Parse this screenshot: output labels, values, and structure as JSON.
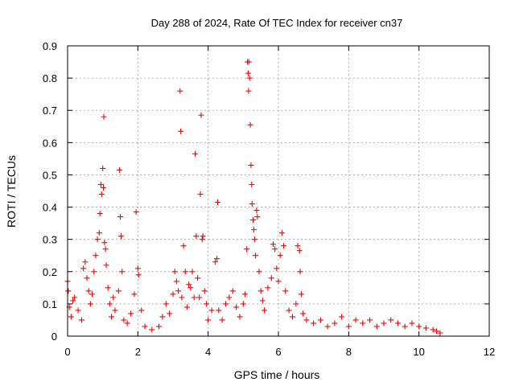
{
  "chart_data": {
    "type": "scatter",
    "title": "Day 288 of 2024, Rate Of TEC Index for receiver cn37",
    "xlabel": "GPS time / hours",
    "ylabel": "ROTI / TECUs",
    "xlim": [
      0,
      12
    ],
    "ylim": [
      0,
      0.9
    ],
    "x_ticks": [
      "0",
      "2",
      "4",
      "6",
      "8",
      "10",
      "12"
    ],
    "y_ticks": [
      "0",
      "0.1",
      "0.2",
      "0.3",
      "0.4",
      "0.5",
      "0.6",
      "0.7",
      "0.8",
      "0.9"
    ],
    "grid": true,
    "marker": "+",
    "series": [
      {
        "name": "ROTI",
        "color": "#ff0000",
        "points": [
          [
            0.0,
            0.17
          ],
          [
            0.02,
            0.14
          ],
          [
            0.05,
            0.09
          ],
          [
            0.1,
            0.06
          ],
          [
            0.15,
            0.11
          ],
          [
            0.2,
            0.12
          ],
          [
            0.3,
            0.08
          ],
          [
            0.4,
            0.05
          ],
          [
            0.45,
            0.21
          ],
          [
            0.5,
            0.23
          ],
          [
            0.55,
            0.18
          ],
          [
            0.6,
            0.14
          ],
          [
            0.65,
            0.1
          ],
          [
            0.7,
            0.13
          ],
          [
            0.75,
            0.2
          ],
          [
            0.8,
            0.25
          ],
          [
            0.85,
            0.3
          ],
          [
            0.9,
            0.32
          ],
          [
            0.92,
            0.38
          ],
          [
            0.95,
            0.47
          ],
          [
            0.97,
            0.44
          ],
          [
            1.0,
            0.52
          ],
          [
            1.02,
            0.46
          ],
          [
            1.03,
            0.68
          ],
          [
            1.05,
            0.29
          ],
          [
            1.08,
            0.27
          ],
          [
            1.1,
            0.22
          ],
          [
            1.15,
            0.15
          ],
          [
            1.2,
            0.1
          ],
          [
            1.25,
            0.06
          ],
          [
            1.3,
            0.12
          ],
          [
            1.35,
            0.08
          ],
          [
            1.45,
            0.14
          ],
          [
            1.48,
            0.515
          ],
          [
            1.5,
            0.37
          ],
          [
            1.52,
            0.31
          ],
          [
            1.55,
            0.2
          ],
          [
            1.6,
            0.05
          ],
          [
            1.7,
            0.04
          ],
          [
            1.8,
            0.07
          ],
          [
            1.9,
            0.13
          ],
          [
            1.95,
            0.385
          ],
          [
            2.0,
            0.21
          ],
          [
            2.02,
            0.19
          ],
          [
            2.1,
            0.08
          ],
          [
            2.2,
            0.03
          ],
          [
            2.4,
            0.02
          ],
          [
            2.6,
            0.03
          ],
          [
            2.7,
            0.06
          ],
          [
            2.8,
            0.1
          ],
          [
            2.9,
            0.07
          ],
          [
            3.0,
            0.13
          ],
          [
            3.05,
            0.2
          ],
          [
            3.1,
            0.17
          ],
          [
            3.15,
            0.14
          ],
          [
            3.2,
            0.76
          ],
          [
            3.22,
            0.635
          ],
          [
            3.25,
            0.12
          ],
          [
            3.3,
            0.28
          ],
          [
            3.35,
            0.2
          ],
          [
            3.4,
            0.09
          ],
          [
            3.45,
            0.16
          ],
          [
            3.5,
            0.15
          ],
          [
            3.55,
            0.2
          ],
          [
            3.6,
            0.12
          ],
          [
            3.63,
            0.565
          ],
          [
            3.66,
            0.31
          ],
          [
            3.7,
            0.18
          ],
          [
            3.75,
            0.12
          ],
          [
            3.78,
            0.44
          ],
          [
            3.8,
            0.685
          ],
          [
            3.83,
            0.3
          ],
          [
            3.85,
            0.31
          ],
          [
            3.9,
            0.14
          ],
          [
            3.95,
            0.1
          ],
          [
            4.0,
            0.05
          ],
          [
            4.1,
            0.08
          ],
          [
            4.2,
            0.23
          ],
          [
            4.25,
            0.24
          ],
          [
            4.27,
            0.415
          ],
          [
            4.3,
            0.08
          ],
          [
            4.4,
            0.05
          ],
          [
            4.5,
            0.1
          ],
          [
            4.6,
            0.12
          ],
          [
            4.7,
            0.14
          ],
          [
            4.8,
            0.09
          ],
          [
            4.9,
            0.06
          ],
          [
            5.0,
            0.1
          ],
          [
            5.05,
            0.13
          ],
          [
            5.1,
            0.27
          ],
          [
            5.12,
            0.85
          ],
          [
            5.14,
            0.815
          ],
          [
            5.15,
            0.76
          ],
          [
            5.16,
            0.85
          ],
          [
            5.18,
            0.8
          ],
          [
            5.2,
            0.655
          ],
          [
            5.22,
            0.53
          ],
          [
            5.24,
            0.47
          ],
          [
            5.25,
            0.41
          ],
          [
            5.28,
            0.36
          ],
          [
            5.3,
            0.33
          ],
          [
            5.32,
            0.3
          ],
          [
            5.35,
            0.25
          ],
          [
            5.38,
            0.39
          ],
          [
            5.4,
            0.37
          ],
          [
            5.45,
            0.2
          ],
          [
            5.5,
            0.14
          ],
          [
            5.55,
            0.11
          ],
          [
            5.6,
            0.08
          ],
          [
            5.7,
            0.15
          ],
          [
            5.8,
            0.18
          ],
          [
            5.85,
            0.285
          ],
          [
            5.9,
            0.27
          ],
          [
            5.95,
            0.21
          ],
          [
            6.0,
            0.17
          ],
          [
            6.05,
            0.25
          ],
          [
            6.1,
            0.32
          ],
          [
            6.15,
            0.28
          ],
          [
            6.2,
            0.14
          ],
          [
            6.3,
            0.08
          ],
          [
            6.4,
            0.06
          ],
          [
            6.5,
            0.1
          ],
          [
            6.55,
            0.28
          ],
          [
            6.6,
            0.265
          ],
          [
            6.62,
            0.2
          ],
          [
            6.65,
            0.13
          ],
          [
            6.7,
            0.07
          ],
          [
            6.8,
            0.05
          ],
          [
            7.0,
            0.04
          ],
          [
            7.2,
            0.05
          ],
          [
            7.4,
            0.03
          ],
          [
            7.6,
            0.04
          ],
          [
            7.8,
            0.06
          ],
          [
            8.0,
            0.03
          ],
          [
            8.2,
            0.05
          ],
          [
            8.4,
            0.04
          ],
          [
            8.6,
            0.05
          ],
          [
            8.8,
            0.03
          ],
          [
            9.0,
            0.04
          ],
          [
            9.2,
            0.05
          ],
          [
            9.4,
            0.04
          ],
          [
            9.6,
            0.03
          ],
          [
            9.8,
            0.04
          ],
          [
            10.0,
            0.03
          ],
          [
            10.2,
            0.025
          ],
          [
            10.4,
            0.02
          ],
          [
            10.5,
            0.015
          ],
          [
            10.6,
            0.01
          ]
        ]
      }
    ]
  }
}
